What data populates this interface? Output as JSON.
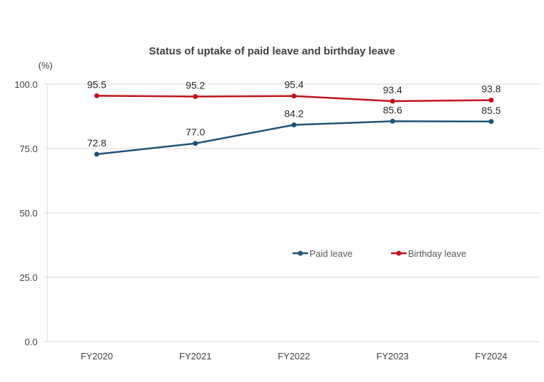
{
  "chart_data": {
    "type": "line",
    "title": "Status of uptake of paid leave and birthday leave",
    "ylabel": "(%)",
    "xlabel": "",
    "categories": [
      "FY2020",
      "FY2021",
      "FY2022",
      "FY2023",
      "FY2024"
    ],
    "ylim": [
      0,
      100
    ],
    "yticks": [
      "0.0",
      "25.0",
      "50.0",
      "75.0",
      "100.0"
    ],
    "ytick_values": [
      0,
      25,
      50,
      75,
      100
    ],
    "grid": true,
    "legend": "center-right",
    "series": [
      {
        "name": "Paid leave",
        "color": "#1F5378",
        "values": [
          72.8,
          77.0,
          84.2,
          85.6,
          85.5
        ],
        "labels": [
          "72.8",
          "77.0",
          "84.2",
          "85.6",
          "85.5"
        ]
      },
      {
        "name": "Birthday leave",
        "color": "#C0141C",
        "values": [
          95.5,
          95.2,
          95.4,
          93.4,
          93.8
        ],
        "labels": [
          "95.5",
          "95.2",
          "95.4",
          "93.4",
          "93.8"
        ]
      }
    ]
  }
}
